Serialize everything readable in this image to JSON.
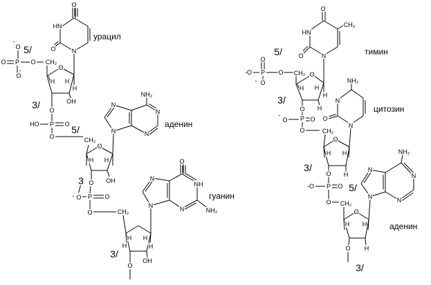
{
  "base_labels": {
    "uracil": "урацил",
    "adenine_1": "аденин",
    "guanine": "гуанин",
    "thymine": "тимин",
    "cytosine": "цитозин",
    "adenine_2": "аденин"
  },
  "prime_labels": [
    "5/",
    "3/",
    "5/",
    "3",
    "/",
    "3/",
    "5/",
    "3/",
    "3/",
    "5/",
    "3/"
  ],
  "atom_labels": [
    "O",
    "HN",
    "O",
    "N",
    "-",
    "O",
    "O",
    "P",
    "O",
    "CH₂",
    "O",
    "-",
    "O",
    "H",
    "H",
    "H",
    "OH",
    "O",
    "HO",
    "P",
    "O",
    "O",
    "CH₂",
    "NH₂",
    "N",
    "N",
    "N",
    "N",
    "O",
    "H",
    "H",
    "OH",
    "O",
    "-",
    "O",
    "P",
    "O",
    "O",
    "CH₂",
    "O",
    "NH",
    "N",
    "NH₂",
    "N",
    "N",
    "H",
    "H",
    "H",
    "H",
    "OH",
    "O",
    "O",
    "HN",
    "CH₃",
    "O",
    "N",
    "O",
    "P",
    "-O",
    "-",
    "O",
    "O",
    "CH₂",
    "O",
    "H",
    "H",
    "H",
    "H",
    "O",
    "-",
    "O",
    "P",
    "O",
    "O",
    "CH₂",
    "NH₂",
    "N",
    "O",
    "N",
    "O",
    "H",
    "H",
    "H",
    "O",
    "-O",
    "P",
    "O",
    "O",
    "CH₂",
    "NH₂",
    "N",
    "N",
    "N",
    "N",
    "O",
    "H",
    "H",
    "O",
    "H"
  ]
}
